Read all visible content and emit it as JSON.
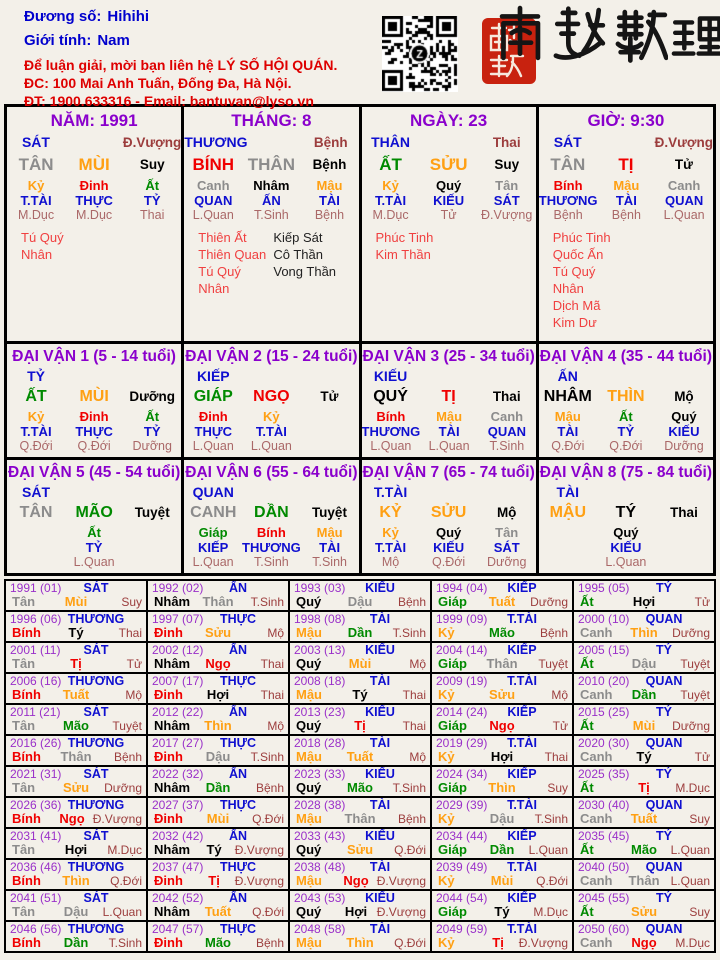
{
  "header": {
    "duong_so_label": "Đương số:",
    "duong_so_value": "Hihihi",
    "gioi_tinh_label": "Giới tính:",
    "gioi_tinh_value": "Nam",
    "contact_line1": "Để luận giải, mời bạn liên hệ LÝ SỐ HỘI QUÁN.",
    "contact_line2": "ĐC: 100 Mai Anh Tuấn, Đống Đa, Hà Nội.",
    "contact_line3": "ĐT: 1900.633316 - Email: bantuvan@lyso.vn",
    "brand_calligraphy": "南越數理"
  },
  "colors": {
    "title_purple": "#8A00CC",
    "year_purple": "#9A30C9",
    "god_blue": "#0F0FD0",
    "status_maroon": "#9C3D3D",
    "status_light": "#AA6868",
    "star_red": "#F04040",
    "star_black": "#222222",
    "info_blue": "#0000CD",
    "contact_red": "#DE0000",
    "seal_red": "#C8220F",
    "char_colors": {
      "giáp": "#008A00",
      "ất": "#008A00",
      "dần": "#008A00",
      "mão": "#008A00",
      "bính": "#F00000",
      "đinh": "#F00000",
      "tị": "#F00000",
      "ngọ": "#F00000",
      "mậu": "#FFA013",
      "kỷ": "#FFA013",
      "thìn": "#FFA013",
      "tuất": "#FFA013",
      "sửu": "#FFA013",
      "mùi": "#FFA013",
      "canh": "#8C8C8C",
      "tân": "#8C8C8C",
      "thân": "#8C8C8C",
      "dậu": "#8C8C8C",
      "nhâm": "#000000",
      "quý": "#000000",
      "hợi": "#000000",
      "tý": "#000000"
    }
  },
  "pillars": [
    {
      "name": "pillar-year",
      "title": "NĂM: 1991",
      "god": "SÁT",
      "god_status": "Đ.Vượng",
      "stem": "TÂN",
      "branch": "MÙI",
      "branch_status": "Suy",
      "hidden": [
        {
          "stem": "Kỷ",
          "god": "T.TÀI",
          "status": "M.Dục"
        },
        {
          "stem": "Đinh",
          "god": "THỰC",
          "status": "M.Dục"
        },
        {
          "stem": "Ất",
          "god": "TỶ",
          "status": "Thai"
        }
      ],
      "stars_red": [
        "Tú Quý Nhân"
      ],
      "stars_black": []
    },
    {
      "name": "pillar-month",
      "title": "THÁNG: 8",
      "god": "THƯƠNG",
      "god_status": "Bệnh",
      "stem": "BÍNH",
      "branch": "THÂN",
      "branch_status": "Bệnh",
      "hidden": [
        {
          "stem": "Canh",
          "god": "QUAN",
          "status": "L.Quan"
        },
        {
          "stem": "Nhâm",
          "god": "ẤN",
          "status": "T.Sinh"
        },
        {
          "stem": "Mậu",
          "god": "TÀI",
          "status": "Bệnh"
        }
      ],
      "stars_red": [
        "Thiên Ất",
        "Thiên Quan",
        "Tú Quý Nhân"
      ],
      "stars_black": [
        "Kiếp Sát",
        "Cô Thần",
        "Vong Thần"
      ]
    },
    {
      "name": "pillar-day",
      "title": "NGÀY: 23",
      "god": "THÂN",
      "god_status": "Thai",
      "stem": "ẤT",
      "branch": "SỬU",
      "branch_status": "Suy",
      "hidden": [
        {
          "stem": "Kỷ",
          "god": "T.TÀI",
          "status": "M.Dục"
        },
        {
          "stem": "Quý",
          "god": "KIẾU",
          "status": "Tử"
        },
        {
          "stem": "Tân",
          "god": "SÁT",
          "status": "Đ.Vượng"
        }
      ],
      "stars_red": [
        "Phúc Tinh",
        "Kim Thần"
      ],
      "stars_black": []
    },
    {
      "name": "pillar-hour",
      "title": "GIỜ: 9:30",
      "god": "SÁT",
      "god_status": "Đ.Vượng",
      "stem": "TÂN",
      "branch": "TỊ",
      "branch_status": "Tử",
      "hidden": [
        {
          "stem": "Bính",
          "god": "THƯƠNG",
          "status": "Bệnh"
        },
        {
          "stem": "Mậu",
          "god": "TÀI",
          "status": "Bệnh"
        },
        {
          "stem": "Canh",
          "god": "QUAN",
          "status": "L.Quan"
        }
      ],
      "stars_red": [
        "Phúc Tinh",
        "Quốc Ấn",
        "Tú Quý Nhân",
        "Dịch Mã",
        "Kim Dư"
      ],
      "stars_black": []
    }
  ],
  "daivan": [
    {
      "name": "daivan-1",
      "title": "ĐẠI VẬN 1 (5 - 14 tuổi)",
      "god": "TỶ",
      "stem": "ẤT",
      "branch": "MÙI",
      "branch_status": "Dưỡng",
      "hidden": [
        {
          "stem": "Kỷ",
          "god": "T.TÀI",
          "status": "Q.Đới"
        },
        {
          "stem": "Đinh",
          "god": "THỰC",
          "status": "Q.Đới"
        },
        {
          "stem": "Ất",
          "god": "TỶ",
          "status": "Dưỡng"
        }
      ]
    },
    {
      "name": "daivan-2",
      "title": "ĐẠI VẬN 2 (15 - 24 tuổi)",
      "god": "KIẾP",
      "stem": "GIÁP",
      "branch": "NGỌ",
      "branch_status": "Tử",
      "hidden": [
        {
          "stem": "Đinh",
          "god": "THỰC",
          "status": "L.Quan"
        },
        {
          "stem": "Kỷ",
          "god": "T.TÀI",
          "status": "L.Quan"
        },
        null
      ]
    },
    {
      "name": "daivan-3",
      "title": "ĐẠI VẬN 3 (25 - 34 tuổi)",
      "god": "KIẾU",
      "stem": "QUÝ",
      "branch": "TỊ",
      "branch_status": "Thai",
      "hidden": [
        {
          "stem": "Bính",
          "god": "THƯƠNG",
          "status": "L.Quan"
        },
        {
          "stem": "Mậu",
          "god": "TÀI",
          "status": "L.Quan"
        },
        {
          "stem": "Canh",
          "god": "QUAN",
          "status": "T.Sinh"
        }
      ]
    },
    {
      "name": "daivan-4",
      "title": "ĐẠI VẬN 4 (35 - 44 tuổi)",
      "god": "ẤN",
      "stem": "NHÂM",
      "branch": "THÌN",
      "branch_status": "Mộ",
      "hidden": [
        {
          "stem": "Mậu",
          "god": "TÀI",
          "status": "Q.Đới"
        },
        {
          "stem": "Ất",
          "god": "TỶ",
          "status": "Q.Đới"
        },
        {
          "stem": "Quý",
          "god": "KIẾU",
          "status": "Dưỡng"
        }
      ]
    },
    {
      "name": "daivan-5",
      "title": "ĐẠI VẬN 5 (45 - 54 tuổi)",
      "god": "SÁT",
      "stem": "TÂN",
      "branch": "MÃO",
      "branch_status": "Tuyệt",
      "hidden": [
        null,
        {
          "stem": "Ất",
          "god": "TỶ",
          "status": "L.Quan"
        },
        null
      ]
    },
    {
      "name": "daivan-6",
      "title": "ĐẠI VẬN 6 (55 - 64 tuổi)",
      "god": "QUAN",
      "stem": "CANH",
      "branch": "DẦN",
      "branch_status": "Tuyệt",
      "hidden": [
        {
          "stem": "Giáp",
          "god": "KIẾP",
          "status": "L.Quan"
        },
        {
          "stem": "Bính",
          "god": "THƯƠNG",
          "status": "T.Sinh"
        },
        {
          "stem": "Mậu",
          "god": "TÀI",
          "status": "T.Sinh"
        }
      ]
    },
    {
      "name": "daivan-7",
      "title": "ĐẠI VẬN 7 (65 - 74 tuổi)",
      "god": "T.TÀI",
      "stem": "KỶ",
      "branch": "SỬU",
      "branch_status": "Mộ",
      "hidden": [
        {
          "stem": "Kỷ",
          "god": "T.TÀI",
          "status": "Mộ"
        },
        {
          "stem": "Quý",
          "god": "KIẾU",
          "status": "Q.Đới"
        },
        {
          "stem": "Tân",
          "god": "SÁT",
          "status": "Dưỡng"
        }
      ]
    },
    {
      "name": "daivan-8",
      "title": "ĐẠI VẬN 8 (75 - 84 tuổi)",
      "god": "TÀI",
      "stem": "MẬU",
      "branch": "TÝ",
      "branch_status": "Thai",
      "hidden": [
        null,
        {
          "stem": "Quý",
          "god": "KIẾU",
          "status": "L.Quan"
        },
        null
      ]
    }
  ],
  "years": [
    {
      "label": "1991 (01)",
      "god": "SÁT",
      "stem": "Tân",
      "branch": "Mùi",
      "status": "Suy"
    },
    {
      "label": "1992 (02)",
      "god": "ẤN",
      "stem": "Nhâm",
      "branch": "Thân",
      "status": "T.Sinh"
    },
    {
      "label": "1993 (03)",
      "god": "KIẾU",
      "stem": "Quý",
      "branch": "Dậu",
      "status": "Bệnh"
    },
    {
      "label": "1994 (04)",
      "god": "KIẾP",
      "stem": "Giáp",
      "branch": "Tuất",
      "status": "Dưỡng"
    },
    {
      "label": "1995 (05)",
      "god": "TỶ",
      "stem": "Ất",
      "branch": "Hợi",
      "status": "Tử"
    },
    {
      "label": "1996 (06)",
      "god": "THƯƠNG",
      "stem": "Bính",
      "branch": "Tý",
      "status": "Thai"
    },
    {
      "label": "1997 (07)",
      "god": "THỰC",
      "stem": "Đinh",
      "branch": "Sửu",
      "status": "Mộ"
    },
    {
      "label": "1998 (08)",
      "god": "TÀI",
      "stem": "Mậu",
      "branch": "Dần",
      "status": "T.Sinh"
    },
    {
      "label": "1999 (09)",
      "god": "T.TÀI",
      "stem": "Kỷ",
      "branch": "Mão",
      "status": "Bệnh"
    },
    {
      "label": "2000 (10)",
      "god": "QUAN",
      "stem": "Canh",
      "branch": "Thìn",
      "status": "Dưỡng"
    },
    {
      "label": "2001 (11)",
      "god": "SÁT",
      "stem": "Tân",
      "branch": "Tị",
      "status": "Tử"
    },
    {
      "label": "2002 (12)",
      "god": "ẤN",
      "stem": "Nhâm",
      "branch": "Ngọ",
      "status": "Thai"
    },
    {
      "label": "2003 (13)",
      "god": "KIẾU",
      "stem": "Quý",
      "branch": "Mùi",
      "status": "Mộ"
    },
    {
      "label": "2004 (14)",
      "god": "KIẾP",
      "stem": "Giáp",
      "branch": "Thân",
      "status": "Tuyệt"
    },
    {
      "label": "2005 (15)",
      "god": "TỶ",
      "stem": "Ất",
      "branch": "Dậu",
      "status": "Tuyệt"
    },
    {
      "label": "2006 (16)",
      "god": "THƯƠNG",
      "stem": "Bính",
      "branch": "Tuất",
      "status": "Mộ"
    },
    {
      "label": "2007 (17)",
      "god": "THỰC",
      "stem": "Đinh",
      "branch": "Hợi",
      "status": "Thai"
    },
    {
      "label": "2008 (18)",
      "god": "TÀI",
      "stem": "Mậu",
      "branch": "Tý",
      "status": "Thai"
    },
    {
      "label": "2009 (19)",
      "god": "T.TÀI",
      "stem": "Kỷ",
      "branch": "Sửu",
      "status": "Mộ"
    },
    {
      "label": "2010 (20)",
      "god": "QUAN",
      "stem": "Canh",
      "branch": "Dần",
      "status": "Tuyệt"
    },
    {
      "label": "2011 (21)",
      "god": "SÁT",
      "stem": "Tân",
      "branch": "Mão",
      "status": "Tuyệt"
    },
    {
      "label": "2012 (22)",
      "god": "ẤN",
      "stem": "Nhâm",
      "branch": "Thìn",
      "status": "Mộ"
    },
    {
      "label": "2013 (23)",
      "god": "KIẾU",
      "stem": "Quý",
      "branch": "Tị",
      "status": "Thai"
    },
    {
      "label": "2014 (24)",
      "god": "KIẾP",
      "stem": "Giáp",
      "branch": "Ngọ",
      "status": "Tử"
    },
    {
      "label": "2015 (25)",
      "god": "TỶ",
      "stem": "Ất",
      "branch": "Mùi",
      "status": "Dưỡng"
    },
    {
      "label": "2016 (26)",
      "god": "THƯƠNG",
      "stem": "Bính",
      "branch": "Thân",
      "status": "Bệnh"
    },
    {
      "label": "2017 (27)",
      "god": "THỰC",
      "stem": "Đinh",
      "branch": "Dậu",
      "status": "T.Sinh"
    },
    {
      "label": "2018 (28)",
      "god": "TÀI",
      "stem": "Mậu",
      "branch": "Tuất",
      "status": "Mộ"
    },
    {
      "label": "2019 (29)",
      "god": "T.TÀI",
      "stem": "Kỷ",
      "branch": "Hợi",
      "status": "Thai"
    },
    {
      "label": "2020 (30)",
      "god": "QUAN",
      "stem": "Canh",
      "branch": "Tý",
      "status": "Tử"
    },
    {
      "label": "2021 (31)",
      "god": "SÁT",
      "stem": "Tân",
      "branch": "Sửu",
      "status": "Dưỡng"
    },
    {
      "label": "2022 (32)",
      "god": "ẤN",
      "stem": "Nhâm",
      "branch": "Dần",
      "status": "Bệnh"
    },
    {
      "label": "2023 (33)",
      "god": "KIẾU",
      "stem": "Quý",
      "branch": "Mão",
      "status": "T.Sinh"
    },
    {
      "label": "2024 (34)",
      "god": "KIẾP",
      "stem": "Giáp",
      "branch": "Thìn",
      "status": "Suy"
    },
    {
      "label": "2025 (35)",
      "god": "TỶ",
      "stem": "Ất",
      "branch": "Tị",
      "status": "M.Dục"
    },
    {
      "label": "2026 (36)",
      "god": "THƯƠNG",
      "stem": "Bính",
      "branch": "Ngọ",
      "status": "Đ.Vượng"
    },
    {
      "label": "2027 (37)",
      "god": "THỰC",
      "stem": "Đinh",
      "branch": "Mùi",
      "status": "Q.Đới"
    },
    {
      "label": "2028 (38)",
      "god": "TÀI",
      "stem": "Mậu",
      "branch": "Thân",
      "status": "Bệnh"
    },
    {
      "label": "2029 (39)",
      "god": "T.TÀI",
      "stem": "Kỷ",
      "branch": "Dậu",
      "status": "T.Sinh"
    },
    {
      "label": "2030 (40)",
      "god": "QUAN",
      "stem": "Canh",
      "branch": "Tuất",
      "status": "Suy"
    },
    {
      "label": "2031 (41)",
      "god": "SÁT",
      "stem": "Tân",
      "branch": "Hợi",
      "status": "M.Dục"
    },
    {
      "label": "2032 (42)",
      "god": "ẤN",
      "stem": "Nhâm",
      "branch": "Tý",
      "status": "Đ.Vượng"
    },
    {
      "label": "2033 (43)",
      "god": "KIẾU",
      "stem": "Quý",
      "branch": "Sửu",
      "status": "Q.Đới"
    },
    {
      "label": "2034 (44)",
      "god": "KIẾP",
      "stem": "Giáp",
      "branch": "Dần",
      "status": "L.Quan"
    },
    {
      "label": "2035 (45)",
      "god": "TỶ",
      "stem": "Ất",
      "branch": "Mão",
      "status": "L.Quan"
    },
    {
      "label": "2036 (46)",
      "god": "THƯƠNG",
      "stem": "Bính",
      "branch": "Thìn",
      "status": "Q.Đới"
    },
    {
      "label": "2037 (47)",
      "god": "THỰC",
      "stem": "Đinh",
      "branch": "Tị",
      "status": "Đ.Vượng"
    },
    {
      "label": "2038 (48)",
      "god": "TÀI",
      "stem": "Mậu",
      "branch": "Ngọ",
      "status": "Đ.Vượng"
    },
    {
      "label": "2039 (49)",
      "god": "T.TÀI",
      "stem": "Kỷ",
      "branch": "Mùi",
      "status": "Q.Đới"
    },
    {
      "label": "2040 (50)",
      "god": "QUAN",
      "stem": "Canh",
      "branch": "Thân",
      "status": "L.Quan"
    },
    {
      "label": "2041 (51)",
      "god": "SÁT",
      "stem": "Tân",
      "branch": "Dậu",
      "status": "L.Quan"
    },
    {
      "label": "2042 (52)",
      "god": "ẤN",
      "stem": "Nhâm",
      "branch": "Tuất",
      "status": "Q.Đới"
    },
    {
      "label": "2043 (53)",
      "god": "KIẾU",
      "stem": "Quý",
      "branch": "Hợi",
      "status": "Đ.Vượng"
    },
    {
      "label": "2044 (54)",
      "god": "KIẾP",
      "stem": "Giáp",
      "branch": "Tý",
      "status": "M.Dục"
    },
    {
      "label": "2045 (55)",
      "god": "TỶ",
      "stem": "Ất",
      "branch": "Sửu",
      "status": "Suy"
    },
    {
      "label": "2046 (56)",
      "god": "THƯƠNG",
      "stem": "Bính",
      "branch": "Dần",
      "status": "T.Sinh"
    },
    {
      "label": "2047 (57)",
      "god": "THỰC",
      "stem": "Đinh",
      "branch": "Mão",
      "status": "Bệnh"
    },
    {
      "label": "2048 (58)",
      "god": "TÀI",
      "stem": "Mậu",
      "branch": "Thìn",
      "status": "Q.Đới"
    },
    {
      "label": "2049 (59)",
      "god": "T.TÀI",
      "stem": "Kỷ",
      "branch": "Tị",
      "status": "Đ.Vượng"
    },
    {
      "label": "2050 (60)",
      "god": "QUAN",
      "stem": "Canh",
      "branch": "Ngọ",
      "status": "M.Dục"
    }
  ]
}
